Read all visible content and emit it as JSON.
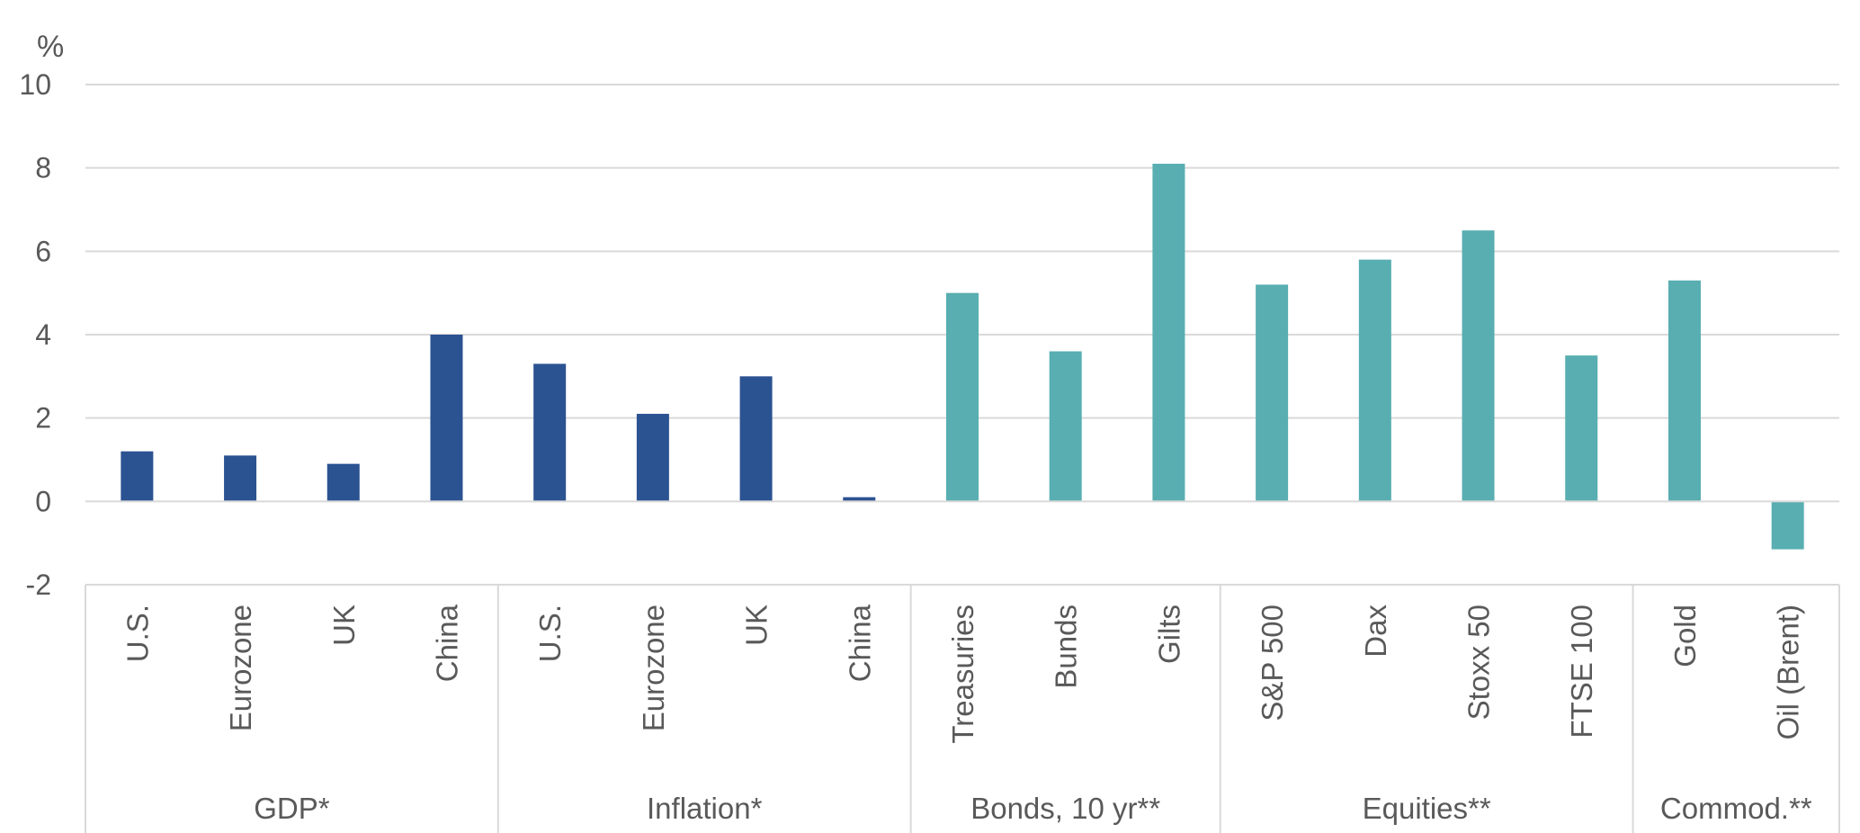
{
  "chart_data": {
    "type": "bar",
    "title": "",
    "ylabel": "%",
    "xlabel": "",
    "ylim": [
      -2,
      10
    ],
    "yticks": [
      -2,
      0,
      2,
      4,
      6,
      8,
      10
    ],
    "grid": true,
    "legend": "none",
    "groups": [
      {
        "label": "GDP*",
        "color": "#2b5291",
        "categories": [
          "U.S.",
          "Eurozone",
          "UK",
          "China"
        ],
        "values": [
          1.2,
          1.1,
          0.9,
          4.0
        ]
      },
      {
        "label": "Inflation*",
        "color": "#2b5291",
        "categories": [
          "U.S.",
          "Eurozone",
          "UK",
          "China"
        ],
        "values": [
          3.3,
          2.1,
          3.0,
          0.1
        ]
      },
      {
        "label": "Bonds, 10 yr**",
        "color": "#58aeb1",
        "categories": [
          "Treasuries",
          "Bunds",
          "Gilts"
        ],
        "values": [
          5.0,
          3.6,
          8.1
        ]
      },
      {
        "label": "Equities**",
        "color": "#58aeb1",
        "categories": [
          "S&P 500",
          "Dax",
          "Stoxx 50",
          "FTSE 100"
        ],
        "values": [
          5.2,
          5.8,
          6.5,
          3.5
        ]
      },
      {
        "label": "Commod.**",
        "color": "#58aeb1",
        "categories": [
          "Gold",
          "Oil (Brent)"
        ],
        "values": [
          5.3,
          -1.15
        ]
      }
    ]
  }
}
